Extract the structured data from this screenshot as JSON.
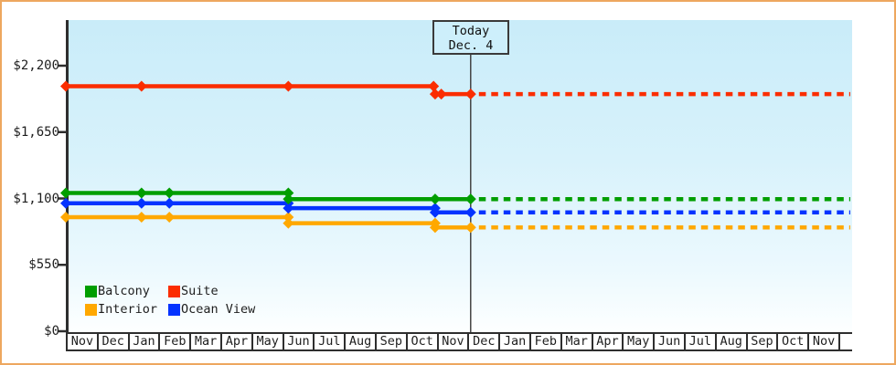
{
  "chart_data": {
    "type": "line",
    "y_axis": {
      "tick_labels": [
        "$2,200",
        "$1,650",
        "$1,100",
        "$550",
        "$0"
      ],
      "tick_values": [
        2200,
        1650,
        1100,
        550,
        0
      ],
      "range": [
        0,
        2580
      ],
      "grid": false
    },
    "x_axis": {
      "month_labels": [
        "Nov",
        "Dec",
        "Jan",
        "Feb",
        "Mar",
        "Apr",
        "May",
        "Jun",
        "Jul",
        "Aug",
        "Sep",
        "Oct",
        "Nov",
        "Dec",
        "Jan",
        "Feb",
        "Mar",
        "Apr",
        "May",
        "Jun",
        "Jul",
        "Aug",
        "Sep",
        "Oct",
        "Nov"
      ]
    },
    "today_marker": {
      "line1": "Today",
      "line2": "Dec. 4",
      "month_offset": 13.1
    },
    "series": [
      {
        "name": "Balcony",
        "color": "#009e00",
        "points": [
          [
            0,
            1145
          ],
          [
            2.45,
            1145
          ],
          [
            3.35,
            1145
          ],
          [
            7.2,
            1145
          ],
          [
            7.2,
            1095
          ],
          [
            11.95,
            1095
          ],
          [
            13.1,
            1095
          ]
        ],
        "forecast_value": 1095
      },
      {
        "name": "Suite",
        "color": "#fb2d00",
        "points": [
          [
            0,
            2030
          ],
          [
            2.45,
            2030
          ],
          [
            7.2,
            2030
          ],
          [
            11.9,
            2030
          ],
          [
            11.95,
            1965
          ],
          [
            12.15,
            1965
          ],
          [
            13.1,
            1965
          ]
        ],
        "forecast_value": 1965
      },
      {
        "name": "Interior",
        "color": "#ffa800",
        "points": [
          [
            0,
            945
          ],
          [
            2.45,
            945
          ],
          [
            3.35,
            945
          ],
          [
            7.2,
            945
          ],
          [
            7.2,
            895
          ],
          [
            11.95,
            895
          ],
          [
            11.95,
            860
          ],
          [
            13.1,
            860
          ]
        ],
        "forecast_value": 860
      },
      {
        "name": "Ocean View",
        "color": "#0433ff",
        "points": [
          [
            0,
            1060
          ],
          [
            2.45,
            1060
          ],
          [
            3.35,
            1060
          ],
          [
            7.2,
            1060
          ],
          [
            7.2,
            1020
          ],
          [
            11.95,
            1020
          ],
          [
            11.95,
            985
          ],
          [
            13.1,
            985
          ]
        ],
        "forecast_value": 985
      }
    ],
    "legend": {
      "position": "bottom-left",
      "items": [
        {
          "label": "Balcony",
          "color": "#009e00"
        },
        {
          "label": "Suite",
          "color": "#fb2d00"
        },
        {
          "label": "Interior",
          "color": "#ffa800"
        },
        {
          "label": "Ocean View",
          "color": "#0433ff"
        }
      ]
    },
    "styles": {
      "frame_border": "#eda75f",
      "plot_bg_top": "#c9ecf9",
      "plot_bg_bottom": "#fdffff",
      "axis_color": "#2e2e2e",
      "today_line_color": "#444444",
      "text_color": "#1e1e1e"
    }
  }
}
